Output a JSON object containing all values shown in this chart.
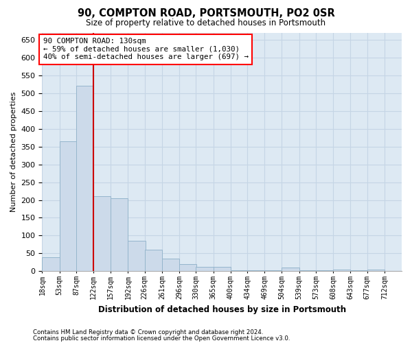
{
  "title": "90, COMPTON ROAD, PORTSMOUTH, PO2 0SR",
  "subtitle": "Size of property relative to detached houses in Portsmouth",
  "xlabel": "Distribution of detached houses by size in Portsmouth",
  "ylabel": "Number of detached properties",
  "bar_color": "#ccdaea",
  "bar_edge_color": "#95b5cc",
  "grid_color": "#c5d5e5",
  "background_color": "#dde9f3",
  "vline_color": "#cc0000",
  "annotation_text": "90 COMPTON ROAD: 130sqm\n← 59% of detached houses are smaller (1,030)\n40% of semi-detached houses are larger (697) →",
  "footnote1": "Contains HM Land Registry data © Crown copyright and database right 2024.",
  "footnote2": "Contains public sector information licensed under the Open Government Licence v3.0.",
  "bin_edges": [
    18,
    53,
    87,
    122,
    157,
    192,
    226,
    261,
    296,
    330,
    365,
    400,
    434,
    469,
    504,
    539,
    573,
    608,
    643,
    677,
    712
  ],
  "bin_labels": [
    "18sqm",
    "53sqm",
    "87sqm",
    "122sqm",
    "157sqm",
    "192sqm",
    "226sqm",
    "261sqm",
    "296sqm",
    "330sqm",
    "365sqm",
    "400sqm",
    "434sqm",
    "469sqm",
    "504sqm",
    "539sqm",
    "573sqm",
    "608sqm",
    "643sqm",
    "677sqm",
    "712sqm"
  ],
  "bar_heights": [
    40,
    365,
    520,
    210,
    205,
    85,
    60,
    35,
    20,
    12,
    12,
    3,
    3,
    3,
    10,
    3,
    3,
    5,
    3,
    5
  ],
  "vline_bin_index": 3,
  "ylim": [
    0,
    670
  ],
  "yticks": [
    0,
    50,
    100,
    150,
    200,
    250,
    300,
    350,
    400,
    450,
    500,
    550,
    600,
    650
  ]
}
